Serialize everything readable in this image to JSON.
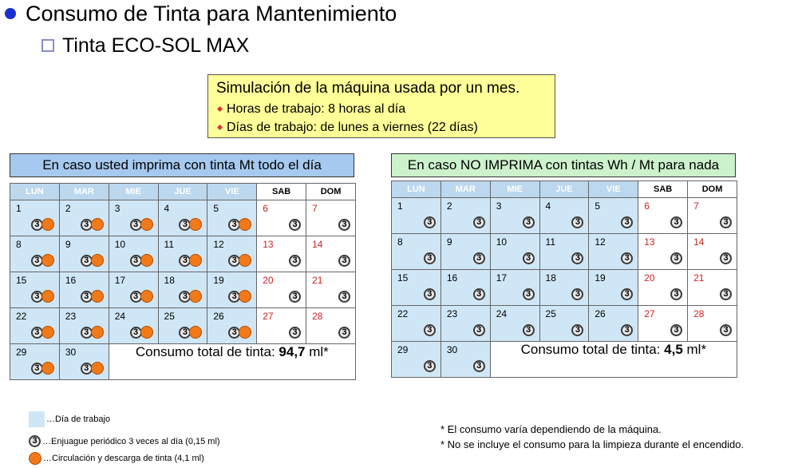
{
  "title": "Consumo de Tinta para Mantenimiento",
  "subtitle": "Tinta ECO-SOL MAX",
  "simulation": {
    "title": "Simulación de la máquina usada por un mes.",
    "items": [
      "Horas de trabajo: 8 horas al día",
      "Días de trabajo: de lunes a viernes (22 días)"
    ]
  },
  "calendar1": {
    "header": "En caso usted imprima con tinta Mt todo el día",
    "total_prefix": "Consumo total de tinta: ",
    "total_value": "94,7",
    "total_suffix": " ml*"
  },
  "calendar2": {
    "header": "En caso NO IMPRIMA con tintas Wh / Mt para nada",
    "total_prefix": "Consumo total de tinta: ",
    "total_value": "4,5",
    "total_suffix": " ml*"
  },
  "weekdays": [
    "LUN",
    "MAR",
    "MIE",
    "JUE",
    "VIE",
    "SAB",
    "DOM"
  ],
  "icon_digit": "3",
  "legend": {
    "work_day": "…Día de trabajo",
    "rinse": "…Enjuague periódico 3 veces al día (0,15 ml)",
    "circulation": "…Circulación y descarga de tinta (4,1 ml)"
  },
  "notes": [
    "* El consumo varía dependiendo de la máquina.",
    "* No se incluye el consumo para la limpieza durante el encendido."
  ],
  "colors": {
    "workday_fill": "#cfe6f6",
    "weekend_number": "#cc2222",
    "circulation_dot": "#f07a1a",
    "sim_box": "#ffff99",
    "header1": "#a6c9ef",
    "header2": "#ccf2cc"
  }
}
